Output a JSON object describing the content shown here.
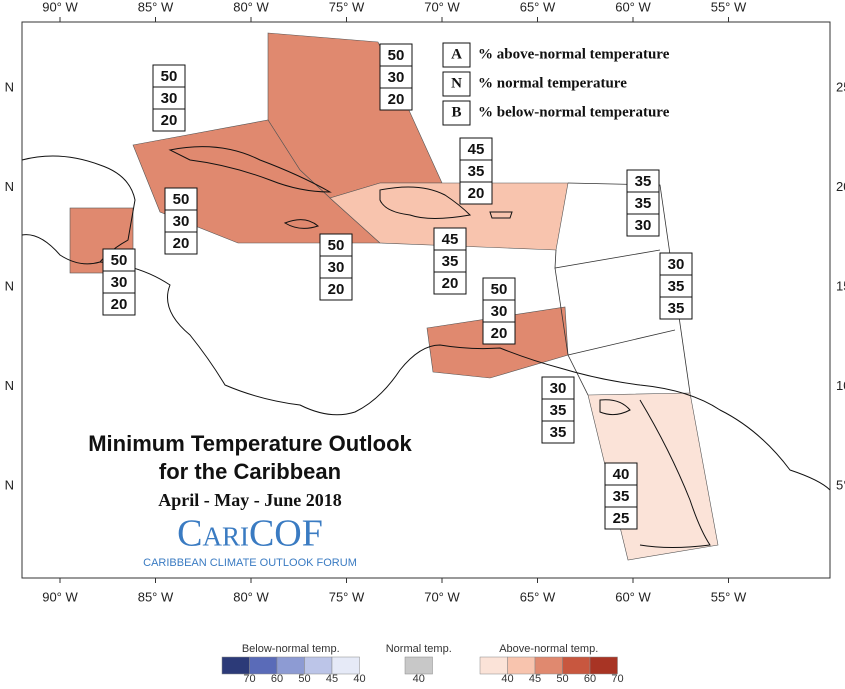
{
  "axes": {
    "top_labels": [
      "90° W",
      "85° W",
      "80° W",
      "75° W",
      "70° W",
      "65° W",
      "60° W",
      "55° W"
    ],
    "bottom_labels": [
      "90° W",
      "85° W",
      "80° W",
      "75° W",
      "70° W",
      "65° W",
      "60° W",
      "55° W"
    ],
    "left_labels": [
      "N",
      "N",
      "N",
      "N",
      "N"
    ],
    "right_labels": [
      "25",
      "20",
      "15",
      "10",
      "5°"
    ]
  },
  "key": [
    {
      "letter": "A",
      "text": "% above-normal temperature"
    },
    {
      "letter": "N",
      "text": "% normal temperature"
    },
    {
      "letter": "B",
      "text": "% below-normal temperature"
    }
  ],
  "regions": [
    {
      "probabilities": [
        50,
        30,
        20
      ]
    },
    {
      "probabilities": [
        50,
        30,
        20
      ]
    },
    {
      "probabilities": [
        45,
        35,
        20
      ]
    },
    {
      "probabilities": [
        35,
        35,
        30
      ]
    },
    {
      "probabilities": [
        50,
        30,
        20
      ]
    },
    {
      "probabilities": [
        50,
        30,
        20
      ]
    },
    {
      "probabilities": [
        45,
        35,
        20
      ]
    },
    {
      "probabilities": [
        50,
        30,
        20
      ]
    },
    {
      "probabilities": [
        50,
        30,
        20
      ]
    },
    {
      "probabilities": [
        30,
        35,
        35
      ]
    },
    {
      "probabilities": [
        30,
        35,
        35
      ]
    },
    {
      "probabilities": [
        40,
        35,
        25
      ]
    }
  ],
  "title": {
    "line1": "Minimum Temperature Outlook",
    "line2": "for the Caribbean",
    "period": "April - May - June 2018"
  },
  "logo": {
    "name": "CariCOF",
    "tagline": "CARIBBEAN CLIMATE OUTLOOK FORUM"
  },
  "color_scale": {
    "below": {
      "label": "Below-normal temp.",
      "ticks": [
        "70",
        "60",
        "50",
        "45",
        "40"
      ]
    },
    "normal": {
      "label": "Normal temp.",
      "ticks": [
        "40"
      ]
    },
    "above": {
      "label": "Above-normal temp.",
      "ticks": [
        "40",
        "45",
        "50",
        "60",
        "70"
      ]
    }
  }
}
